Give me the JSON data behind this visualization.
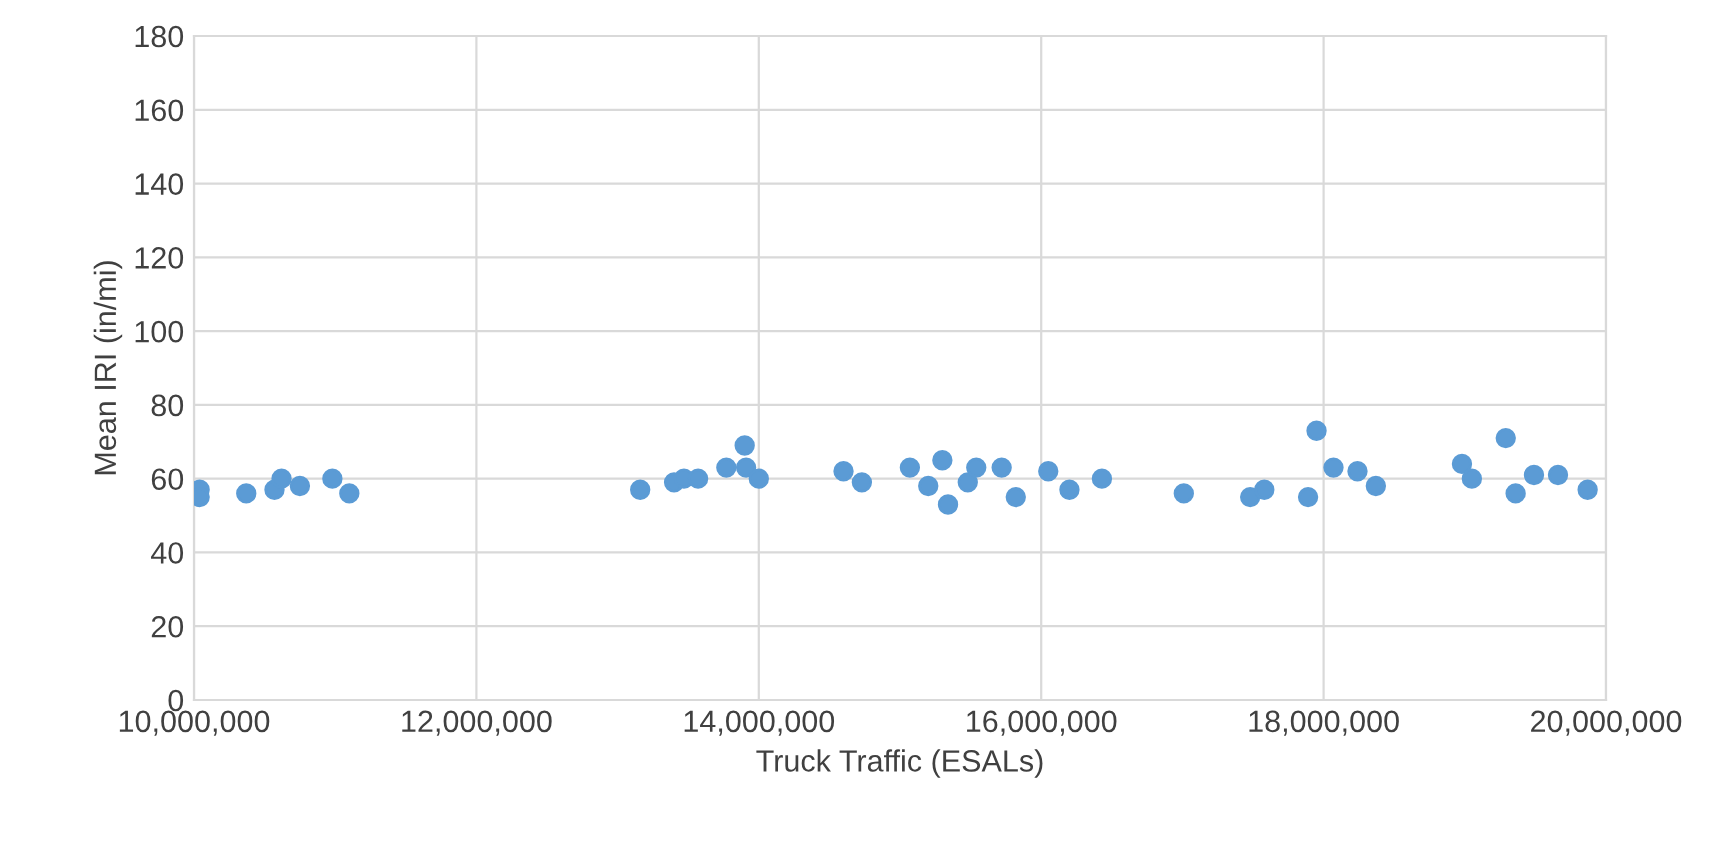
{
  "chart_data": {
    "type": "scatter",
    "xlabel": "Truck Traffic (ESALs)",
    "ylabel": "Mean IRI (in/mi)",
    "x": [
      10040000,
      10040000,
      10370000,
      10570000,
      10620000,
      10750000,
      10980000,
      11100000,
      13160000,
      13400000,
      13470000,
      13570000,
      13770000,
      13900000,
      13910000,
      14000000,
      14600000,
      14730000,
      15070000,
      15200000,
      15300000,
      15340000,
      15480000,
      15540000,
      15720000,
      15820000,
      16050000,
      16200000,
      16430000,
      17010000,
      17480000,
      17580000,
      17890000,
      17950000,
      18070000,
      18240000,
      18370000,
      18980000,
      19050000,
      19290000,
      19360000,
      19490000,
      19660000,
      19870000
    ],
    "series": [
      {
        "color": "#5b9bd5",
        "values": [
          57,
          55,
          56,
          57,
          60,
          58,
          60,
          56,
          57,
          59,
          60,
          60,
          63,
          69,
          63,
          60,
          62,
          59,
          63,
          58,
          65,
          53,
          59,
          63,
          63,
          55,
          62,
          57,
          60,
          56,
          55,
          57,
          55,
          73,
          63,
          62,
          58,
          64,
          60,
          71,
          56,
          61,
          61,
          57
        ]
      }
    ],
    "xlim": [
      10000000,
      20000000
    ],
    "xticks": [
      {
        "value": 10000000,
        "label": "10,000,000"
      },
      {
        "value": 12000000,
        "label": "12,000,000"
      },
      {
        "value": 14000000,
        "label": "14,000,000"
      },
      {
        "value": 16000000,
        "label": "16,000,000"
      },
      {
        "value": 18000000,
        "label": "18,000,000"
      },
      {
        "value": 20000000,
        "label": "20,000,000"
      }
    ],
    "ylim": [
      0,
      180
    ],
    "yticks": [
      0,
      20,
      40,
      60,
      80,
      100,
      120,
      140,
      160,
      180
    ],
    "grid": true,
    "marker": "circle"
  }
}
